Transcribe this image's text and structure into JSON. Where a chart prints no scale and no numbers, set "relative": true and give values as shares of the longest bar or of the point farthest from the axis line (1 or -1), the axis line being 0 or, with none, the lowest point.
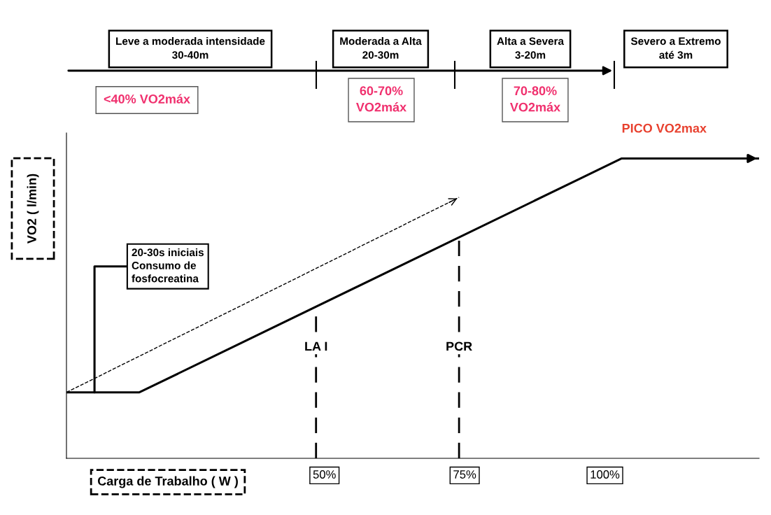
{
  "chart_data": {
    "type": "line",
    "relative": true,
    "xlabel": "Carga de Trabalho ( W )",
    "ylabel": "VO2 ( l/min)",
    "x": [
      4,
      17,
      103,
      127.5
    ],
    "series": [
      {
        "color": "#000000",
        "values": [
          0.22,
          0.22,
          1,
          1
        ]
      },
      {
        "color": "#000000",
        "x": [
          4,
          74
        ],
        "values": [
          0.22,
          0.87
        ],
        "line_style": "dashed"
      }
    ],
    "xlim": [
      4,
      127.5
    ],
    "xticks": [
      {
        "value": 50,
        "label": "50%"
      },
      {
        "value": 75,
        "label": "75%"
      },
      {
        "value": 100,
        "label": "100%"
      }
    ],
    "ref_lines": [
      {
        "axis": "x",
        "value": 48.5,
        "label": "LA I",
        "color": "#000000",
        "line_style": "dashed"
      },
      {
        "axis": "x",
        "value": 74,
        "label": "PCR",
        "color": "#000000",
        "line_style": "dashed"
      }
    ],
    "annotations": [
      "Leve a moderada intensidade\n30-40m",
      "Moderada a Alta\n20-30m",
      "Alta a Severa\n3-20m",
      "Severo a Extremo\naté 3m",
      "<40% VO2máx",
      "60-70%\nVO2máx",
      "70-80%\nVO2máx",
      {
        "text": "PICO VO2max",
        "x": 103,
        "y": 1
      },
      {
        "text": "20-30s iniciais\nConsumo de\nfosfocreatina",
        "x": 9,
        "y": 0.22
      }
    ],
    "grid": false,
    "marker": "none",
    "line_style": "solid"
  }
}
